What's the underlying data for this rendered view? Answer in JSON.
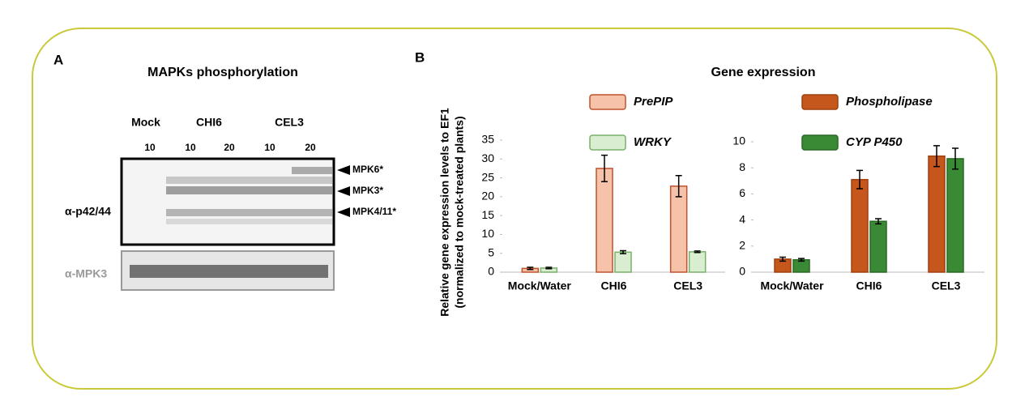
{
  "panel_a": {
    "label": "A",
    "title": "MAPKs phosphorylation",
    "groups": [
      "Mock",
      "CHI6",
      "CEL3"
    ],
    "lanes": [
      10,
      10,
      20,
      10,
      20
    ],
    "bands": [
      "MPK6*",
      "MPK3*",
      "MPK4/11*"
    ],
    "antibodies": [
      "α-p42/44",
      "α-MPK3"
    ]
  },
  "panel_b": {
    "label": "B",
    "title": "Gene expression",
    "ylabel": [
      "Relative gene expression levels to EF1",
      "(normalized to mock-treated plants)"
    ]
  },
  "chart_data": [
    {
      "type": "bar",
      "categories": [
        "Mock/Water",
        "CHI6",
        "CEL3"
      ],
      "series": [
        {
          "name": "PrePIP",
          "color": "#f6c3aa",
          "edge": "#c0522a",
          "values": [
            1,
            27.5,
            22.8
          ],
          "errors": [
            0.3,
            3.5,
            2.8
          ]
        },
        {
          "name": "WRKY",
          "color": "#d9eed0",
          "edge": "#7ab06a",
          "values": [
            1.1,
            5.3,
            5.4
          ],
          "errors": [
            0.2,
            0.4,
            0.2
          ]
        }
      ],
      "ylim": [
        0,
        35
      ],
      "yticks": [
        0,
        5,
        10,
        15,
        20,
        25,
        30,
        35
      ]
    },
    {
      "type": "bar",
      "categories": [
        "Mock/Water",
        "CHI6",
        "CEL3"
      ],
      "series": [
        {
          "name": "Phospholipase",
          "color": "#c5561c",
          "edge": "#a0400f",
          "values": [
            1,
            7.1,
            8.9
          ],
          "errors": [
            0.15,
            0.7,
            0.8
          ]
        },
        {
          "name": "CYP P450",
          "color": "#3a8a35",
          "edge": "#2a6a26",
          "values": [
            0.95,
            3.9,
            8.7
          ],
          "errors": [
            0.1,
            0.2,
            0.8
          ]
        }
      ],
      "ylim": [
        0,
        10
      ],
      "yticks": [
        0,
        2,
        4,
        6,
        8,
        10
      ]
    }
  ]
}
